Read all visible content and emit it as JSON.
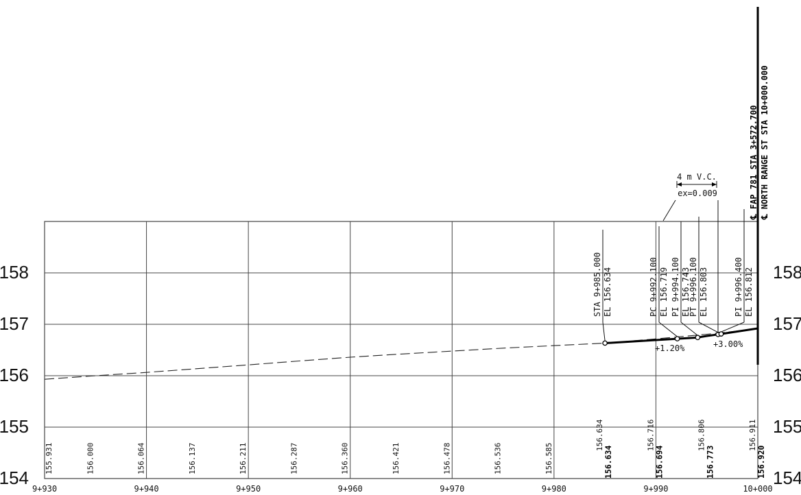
{
  "chart_data": {
    "type": "line",
    "x_ticks": [
      "9+930",
      "9+940",
      "9+950",
      "9+960",
      "9+970",
      "9+980",
      "9+990",
      "10+000"
    ],
    "x_range": [
      9930,
      10000
    ],
    "y_ticks": [
      "154",
      "155",
      "156",
      "157",
      "158"
    ],
    "y_range": [
      154,
      159
    ],
    "existing_elevations": [
      {
        "x": 9930,
        "label": "155.931"
      },
      {
        "x": 9935,
        "label": "156.000"
      },
      {
        "x": 9940,
        "label": "156.064"
      },
      {
        "x": 9945,
        "label": "156.137"
      },
      {
        "x": 9950,
        "label": "156.211"
      },
      {
        "x": 9955,
        "label": "156.287"
      },
      {
        "x": 9960,
        "label": "156.360"
      },
      {
        "x": 9965,
        "label": "156.421"
      },
      {
        "x": 9970,
        "label": "156.478"
      },
      {
        "x": 9975,
        "label": "156.536"
      },
      {
        "x": 9980,
        "label": "156.585"
      },
      {
        "x": 9985,
        "label": "156.634"
      },
      {
        "x": 9990,
        "label": "156.716"
      },
      {
        "x": 9995,
        "label": "156.806"
      },
      {
        "x": 10000,
        "label": "156.911"
      }
    ],
    "proposed_elevations": [
      {
        "x": 9985,
        "label": "156.634"
      },
      {
        "x": 9990,
        "label": "156.694"
      },
      {
        "x": 9995,
        "label": "156.773"
      },
      {
        "x": 10000,
        "label": "156.920"
      }
    ],
    "series": [
      {
        "style": "dashed",
        "points": [
          [
            9930,
            155.931
          ],
          [
            9935,
            156.0
          ],
          [
            9940,
            156.064
          ],
          [
            9945,
            156.137
          ],
          [
            9950,
            156.211
          ],
          [
            9955,
            156.287
          ],
          [
            9960,
            156.36
          ],
          [
            9965,
            156.421
          ],
          [
            9970,
            156.478
          ],
          [
            9975,
            156.536
          ],
          [
            9980,
            156.585
          ],
          [
            9985,
            156.634
          ],
          [
            9990,
            156.716
          ],
          [
            9995,
            156.806
          ],
          [
            10000,
            156.911
          ]
        ]
      },
      {
        "style": "solid",
        "points": [
          [
            9985,
            156.634
          ],
          [
            9990,
            156.694
          ],
          [
            9992.1,
            156.719
          ],
          [
            9994.1,
            156.743
          ],
          [
            9995,
            156.773
          ],
          [
            9996.1,
            156.803
          ],
          [
            9996.4,
            156.812
          ],
          [
            10000,
            156.92
          ]
        ]
      }
    ],
    "control_points": [
      {
        "x": 9985,
        "y": 156.634,
        "sta": "STA 9+985.000",
        "el": "EL 156.634"
      },
      {
        "x": 9992.1,
        "y": 156.719,
        "sta": "PC 9+992.100",
        "el": "EL 156.719"
      },
      {
        "x": 9994.1,
        "y": 156.743,
        "sta": "PI 9+994.100",
        "el": "EL 156.743"
      },
      {
        "x": 9996.1,
        "y": 156.803,
        "sta": "PT 9+996.100",
        "el": "EL 156.803"
      },
      {
        "x": 9996.4,
        "y": 156.812,
        "sta": "PI 9+996.400",
        "el": "EL 156.812"
      }
    ],
    "grades": [
      "+1.20%",
      "+3.00%"
    ],
    "vertical_curve": {
      "length": "4 m V.C.",
      "ex": "ex=0.009"
    },
    "centerlines": [
      "℄ FAP 781 STA 3+572.700",
      "℄ NORTH RANGE ST STA 10+000.000"
    ]
  }
}
